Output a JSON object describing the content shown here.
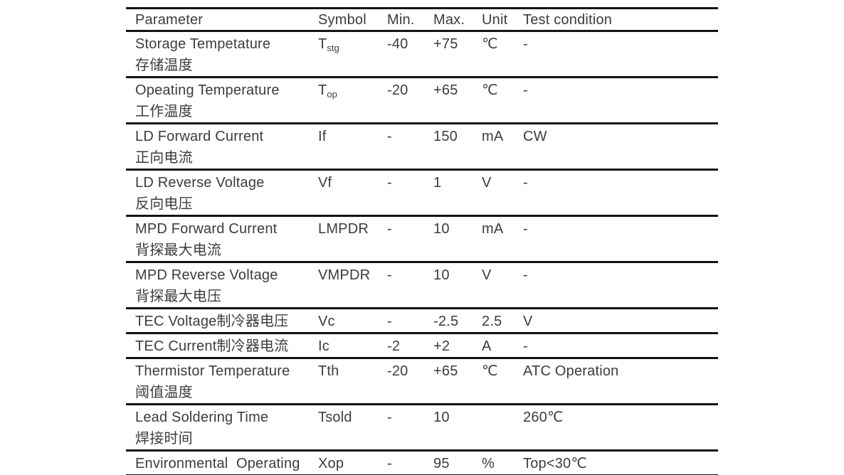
{
  "table": {
    "columns": [
      "Parameter",
      "Symbol",
      "Min.",
      "Max.",
      "Unit",
      "Test condition"
    ],
    "rows": [
      {
        "param_en": "Storage Tempetature",
        "param_cn": "存储温度",
        "symbol": "T",
        "symbol_sub": "stg",
        "min": "-40",
        "max": "+75",
        "unit": "℃",
        "test": "-"
      },
      {
        "param_en": "Opeating Temperature",
        "param_cn": "工作温度",
        "symbol": "T",
        "symbol_sub": "op",
        "min": "-20",
        "max": "+65",
        "unit": "℃",
        "test": "-"
      },
      {
        "param_en": "LD Forward Current",
        "param_cn": "正向电流",
        "symbol": "If",
        "symbol_sub": "",
        "min": "-",
        "max": "150",
        "unit": "mA",
        "test": "CW"
      },
      {
        "param_en": "LD Reverse Voltage",
        "param_cn": "反向电压",
        "symbol": "Vf",
        "symbol_sub": "",
        "min": "-",
        "max": "1",
        "unit": "V",
        "test": "-"
      },
      {
        "param_en": "MPD Forward Current",
        "param_cn": "背探最大电流",
        "symbol": "LMPDR",
        "symbol_sub": "",
        "min": "-",
        "max": "10",
        "unit": "mA",
        "test": "-"
      },
      {
        "param_en": "MPD Reverse Voltage",
        "param_cn": "背探最大电压",
        "symbol": "VMPDR",
        "symbol_sub": "",
        "min": "-",
        "max": "10",
        "unit": "V",
        "test": "-"
      },
      {
        "param_en": "TEC Voltage制冷器电压",
        "param_cn": "",
        "symbol": "Vc",
        "symbol_sub": "",
        "min": "-",
        "max": "-2.5",
        "unit": "2.5",
        "test": "V"
      },
      {
        "param_en": "TEC Current制冷器电流",
        "param_cn": "",
        "symbol": "Ic",
        "symbol_sub": "",
        "min": "-2",
        "max": "+2",
        "unit": "A",
        "test": "-"
      },
      {
        "param_en": "Thermistor Temperature",
        "param_cn": "阈值温度",
        "symbol": "Tth",
        "symbol_sub": "",
        "min": "-20",
        "max": "+65",
        "unit": "℃",
        "test": "ATC Operation"
      },
      {
        "param_en": "Lead Soldering Time",
        "param_cn": "焊接时间",
        "symbol": "Tsold",
        "symbol_sub": "",
        "min": "-",
        "max": "10",
        "unit": "",
        "test": "260℃"
      },
      {
        "param_en": "Environmental  Operating",
        "param_cn": "",
        "symbol": "Xop",
        "symbol_sub": "",
        "min": "-",
        "max": "95",
        "unit": "%",
        "test": "Top<30℃"
      }
    ]
  }
}
